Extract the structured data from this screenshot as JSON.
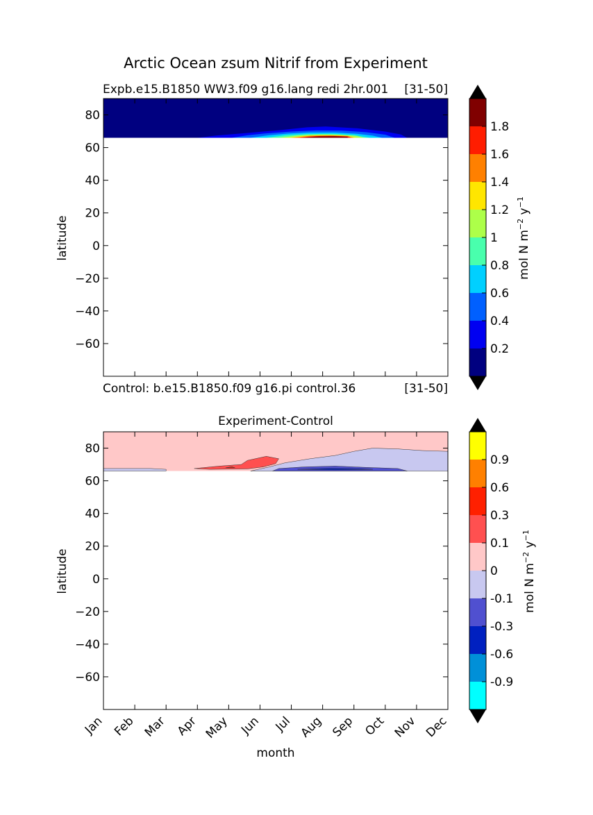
{
  "figure": {
    "title": "Arctic Ocean zsum Nitrif from Experiment"
  },
  "chart_data": [
    {
      "type": "heatmap",
      "title_left": "Expb.e15.B1850 WW3.f09 g16.lang redi 2hr.001",
      "title_right": "[31-50]",
      "subtitle_left": "Control: b.e15.B1850.f09 g16.pi control.36",
      "subtitle_right": "[31-50]",
      "ylabel": "latitude",
      "xlabel": "",
      "xlim": [
        0,
        11
      ],
      "ylim": [
        -80,
        90
      ],
      "yticks": [
        "80",
        "60",
        "40",
        "20",
        "0",
        "−20",
        "−40",
        "−60"
      ],
      "yticks_values": [
        80,
        60,
        40,
        20,
        0,
        -20,
        -40,
        -60
      ],
      "data_lat_min": 66,
      "background_color": "#000080",
      "colorbar": {
        "label_main": "mol N m",
        "label_sup1": "−2",
        "label_mid": " y",
        "label_sup2": "−1",
        "levels": [
          0,
          0.2,
          0.4,
          0.6,
          0.8,
          1.0,
          1.2,
          1.4,
          1.6,
          1.8,
          2.0
        ],
        "tick_labels": [
          "0.2",
          "0.4",
          "0.6",
          "0.8",
          "1",
          "1.2",
          "1.4",
          "1.6",
          "1.8"
        ],
        "colors": [
          "#000080",
          "#0000f1",
          "#0060ff",
          "#00d0ff",
          "#49ffad",
          "#adff49",
          "#ffe600",
          "#ff8000",
          "#ff1d00",
          "#800000"
        ],
        "under_color": "#000000",
        "over_color": "#000000"
      },
      "contours": [
        {
          "level": 0.2,
          "points": [
            [
              3.0,
              66
            ],
            [
              3.6,
              67.4
            ],
            [
              4.5,
              68.8
            ],
            [
              5.6,
              70.6
            ],
            [
              6.5,
              72.4
            ],
            [
              7.1,
              72.9
            ],
            [
              8.1,
              71.8
            ],
            [
              9.0,
              69.8
            ],
            [
              9.5,
              68
            ],
            [
              9.7,
              66
            ]
          ]
        },
        {
          "level": 0.4,
          "points": [
            [
              4.1,
              66
            ],
            [
              4.6,
              67.5
            ],
            [
              5.2,
              68.7
            ],
            [
              6.0,
              69.8
            ],
            [
              6.8,
              70.5
            ],
            [
              7.6,
              70.4
            ],
            [
              8.4,
              69.4
            ],
            [
              9.0,
              67.9
            ],
            [
              9.3,
              66
            ]
          ]
        },
        {
          "level": 0.6,
          "points": [
            [
              4.7,
              66
            ],
            [
              5.3,
              67.6
            ],
            [
              5.9,
              68.6
            ],
            [
              6.6,
              69.2
            ],
            [
              7.4,
              69.2
            ],
            [
              8.1,
              68.4
            ],
            [
              8.6,
              67.3
            ],
            [
              8.9,
              66
            ]
          ]
        },
        {
          "level": 0.8,
          "points": [
            [
              5.2,
              66
            ],
            [
              5.8,
              67.5
            ],
            [
              6.5,
              68.3
            ],
            [
              7.3,
              68.4
            ],
            [
              8.0,
              67.7
            ],
            [
              8.5,
              66
            ]
          ]
        },
        {
          "level": 1.0,
          "points": [
            [
              5.6,
              66
            ],
            [
              6.2,
              67.4
            ],
            [
              6.9,
              68
            ],
            [
              7.5,
              67.9
            ],
            [
              8.1,
              67.1
            ],
            [
              8.3,
              66
            ]
          ]
        },
        {
          "level": 1.2,
          "points": [
            [
              5.9,
              66
            ],
            [
              6.5,
              67.3
            ],
            [
              7.1,
              67.6
            ],
            [
              7.7,
              67.4
            ],
            [
              8.1,
              66
            ]
          ]
        },
        {
          "level": 1.4,
          "points": [
            [
              6.0,
              66
            ],
            [
              6.6,
              67.2
            ],
            [
              7.2,
              67.4
            ],
            [
              7.8,
              67.1
            ],
            [
              8.0,
              66
            ]
          ]
        },
        {
          "level": 1.6,
          "points": [
            [
              6.2,
              66
            ],
            [
              6.8,
              67.1
            ],
            [
              7.3,
              67.2
            ],
            [
              7.8,
              66.9
            ],
            [
              7.9,
              66
            ]
          ]
        },
        {
          "level": 1.8,
          "points": [
            [
              6.3,
              66
            ],
            [
              6.9,
              66.9
            ],
            [
              7.4,
              67
            ],
            [
              7.8,
              66.6
            ],
            [
              7.8,
              66
            ]
          ]
        }
      ]
    },
    {
      "type": "heatmap",
      "title": "Experiment-Control",
      "ylabel": "latitude",
      "xlabel": "month",
      "xlim": [
        0,
        11
      ],
      "ylim": [
        -80,
        90
      ],
      "xticks": [
        "Jan",
        "Feb",
        "Mar",
        "Apr",
        "May",
        "Jun",
        "Jul",
        "Aug",
        "Sep",
        "Oct",
        "Nov",
        "Dec"
      ],
      "yticks": [
        "80",
        "60",
        "40",
        "20",
        "0",
        "−20",
        "−40",
        "−60"
      ],
      "yticks_values": [
        80,
        60,
        40,
        20,
        0,
        -20,
        -40,
        -60
      ],
      "data_lat_min": 66,
      "background_color": "#ffc8c8",
      "colorbar": {
        "label_main": "mol N m",
        "label_sup1": "−2",
        "label_mid": " y",
        "label_sup2": "−1",
        "levels": [
          -1.2,
          -0.9,
          -0.6,
          -0.3,
          -0.1,
          0,
          0.1,
          0.3,
          0.6,
          0.9,
          1.2
        ],
        "tick_labels": [
          "-0.9",
          "-0.6",
          "-0.3",
          "-0.1",
          "0",
          "0.1",
          "0.3",
          "0.6",
          "0.9"
        ],
        "colors": [
          "#00ffff",
          "#0090d8",
          "#0020c0",
          "#5050d0",
          "#c8c8f0",
          "#ffc8c8",
          "#ff5050",
          "#ff2000",
          "#ff8000",
          "#ffff00"
        ],
        "under_color": "#000000",
        "over_color": "#000000"
      },
      "contours": [
        {
          "level": -0.1,
          "fill": "#c8c8f0",
          "points": [
            [
              0,
              66
            ],
            [
              0,
              67.5
            ],
            [
              1.5,
              67.5
            ],
            [
              2.0,
              67
            ],
            [
              2.0,
              66
            ]
          ]
        },
        {
          "level": -0.1,
          "fill": "#c8c8f0",
          "points": [
            [
              4.7,
              66
            ],
            [
              5.3,
              68.5
            ],
            [
              5.8,
              71
            ],
            [
              6.6,
              73.5
            ],
            [
              7.4,
              75.5
            ],
            [
              8.0,
              78
            ],
            [
              8.6,
              80
            ],
            [
              9.4,
              79.5
            ],
            [
              10.2,
              78.5
            ],
            [
              11,
              78
            ],
            [
              11,
              66
            ]
          ]
        },
        {
          "level": -0.3,
          "fill": "#5050d0",
          "points": [
            [
              5.4,
              66
            ],
            [
              5.6,
              67.5
            ],
            [
              6.4,
              68.5
            ],
            [
              7.4,
              69
            ],
            [
              8.4,
              68.2
            ],
            [
              9.4,
              67.5
            ],
            [
              9.7,
              66
            ]
          ]
        },
        {
          "level": -0.6,
          "fill": "#0020c0",
          "points": [
            [
              6.2,
              67
            ],
            [
              7.2,
              67.6
            ],
            [
              8.2,
              67.4
            ],
            [
              8.6,
              67
            ],
            [
              7.4,
              66.7
            ]
          ]
        },
        {
          "level": 0.1,
          "fill": "#ff5050",
          "points": [
            [
              2.9,
              67.5
            ],
            [
              3.7,
              69
            ],
            [
              4.4,
              70
            ],
            [
              4.6,
              72.5
            ],
            [
              5.2,
              75
            ],
            [
              5.6,
              73.5
            ],
            [
              5.5,
              70.5
            ],
            [
              5.1,
              68.5
            ],
            [
              4.6,
              67.3
            ],
            [
              3.4,
              67
            ]
          ]
        },
        {
          "level": 0.3,
          "fill": "#ff2000",
          "points": [
            [
              3.9,
              68
            ],
            [
              4.1,
              68.6
            ],
            [
              4.2,
              68
            ]
          ]
        }
      ]
    }
  ]
}
